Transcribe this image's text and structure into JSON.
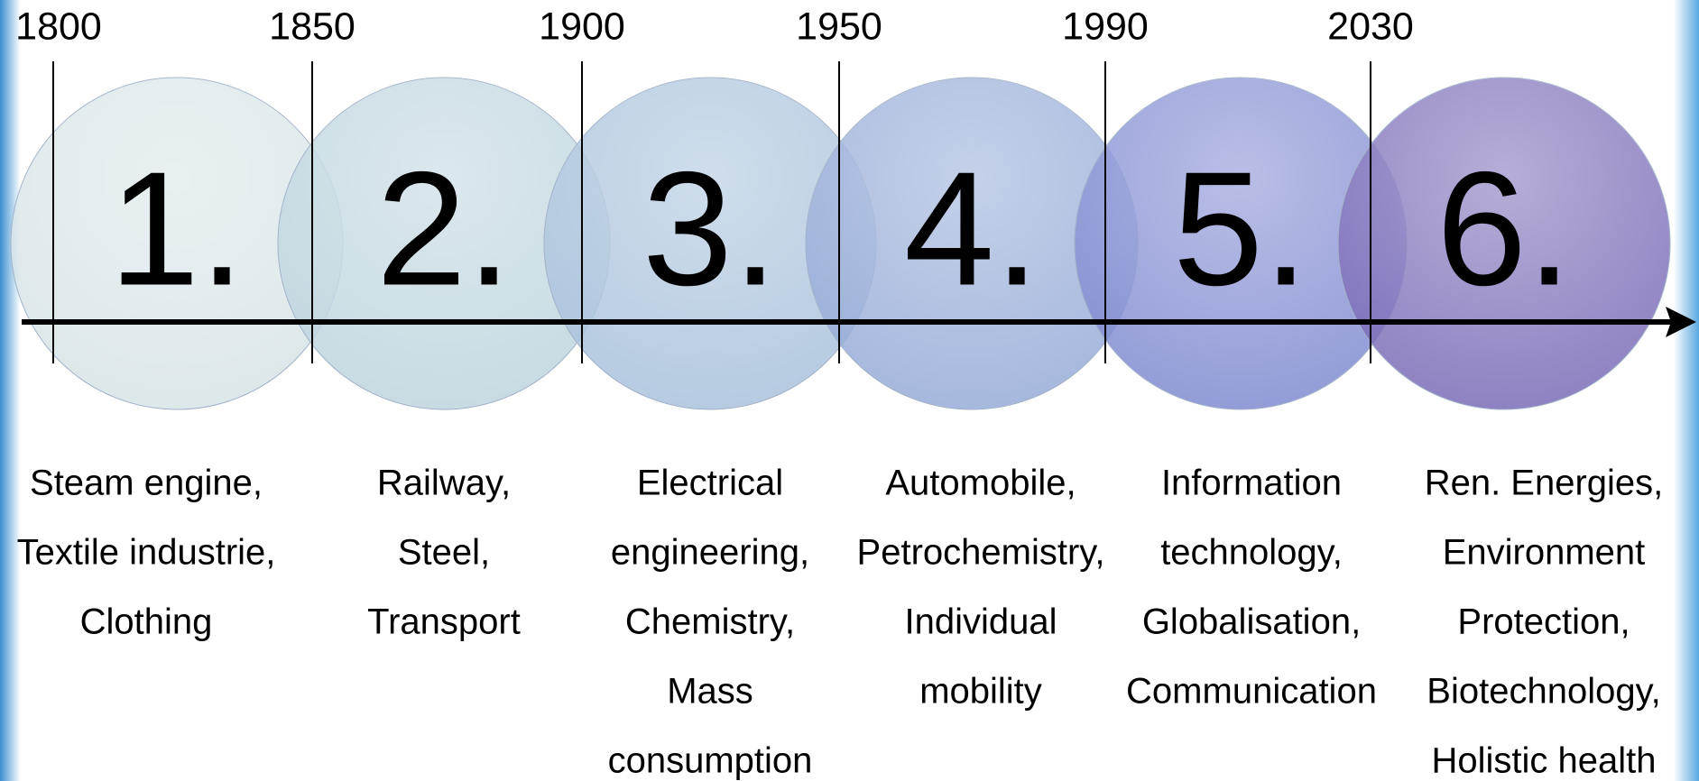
{
  "years": [
    "1800",
    "1850",
    "1900",
    "1950",
    "1990",
    "2030"
  ],
  "waves": [
    {
      "number": "1.",
      "lines": [
        "Steam engine,",
        "Textile industrie,",
        "Clothing"
      ]
    },
    {
      "number": "2.",
      "lines": [
        "Railway,",
        "Steel,",
        "Transport"
      ]
    },
    {
      "number": "3.",
      "lines": [
        "Electrical",
        "engineering,",
        "Chemistry,",
        "Mass",
        "consumption"
      ]
    },
    {
      "number": "4.",
      "lines": [
        "Automobile,",
        "Petrochemistry,",
        "Individual",
        "mobility"
      ]
    },
    {
      "number": "5.",
      "lines": [
        "Information",
        "technology,",
        "Globalisation,",
        "Communication"
      ]
    },
    {
      "number": "6.",
      "lines": [
        "Ren. Energies,",
        "Environment",
        "Protection,",
        "Biotechnology,",
        "Holistic health"
      ]
    }
  ]
}
